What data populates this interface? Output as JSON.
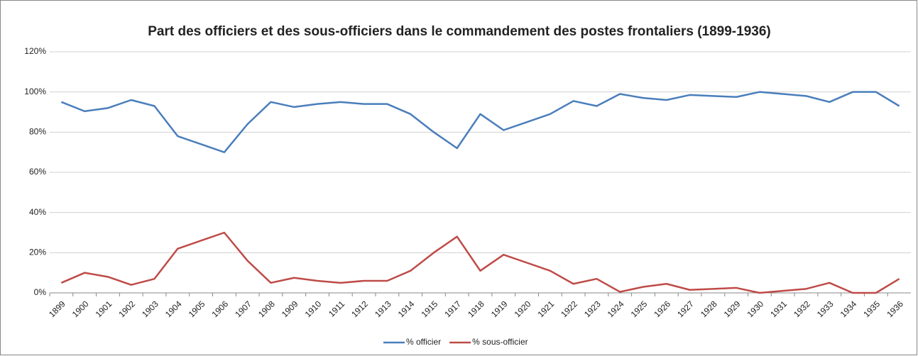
{
  "chart_data": {
    "type": "line",
    "title": "Part des officiers et des sous-officiers dans le commandement des postes frontaliers (1899-1936)",
    "categories": [
      "1899",
      "1900",
      "1901",
      "1902",
      "1903",
      "1904",
      "1905",
      "1906",
      "1907",
      "1908",
      "1909",
      "1910",
      "1911",
      "1912",
      "1913",
      "1914",
      "1915",
      "1917",
      "1918",
      "1919",
      "1920",
      "1921",
      "1922",
      "1923",
      "1924",
      "1925",
      "1926",
      "1927",
      "1928",
      "1929",
      "1930",
      "1931",
      "1932",
      "1933",
      "1934",
      "1935",
      "1936"
    ],
    "series": [
      {
        "name": "% officier",
        "color": "#4a7ebb",
        "values": [
          95,
          90.4,
          92,
          96,
          93,
          78,
          74,
          70,
          84,
          95,
          92.5,
          94,
          95,
          94,
          94,
          89,
          80,
          72,
          89,
          81,
          85,
          89,
          95.5,
          93,
          99,
          97,
          96,
          98.5,
          98,
          97.5,
          100,
          99,
          98,
          95,
          100,
          100,
          93
        ]
      },
      {
        "name": "% sous-officier",
        "color": "#be4b48",
        "values": [
          5,
          10,
          8,
          4,
          7,
          22,
          26,
          30,
          16,
          5,
          7.5,
          6,
          5,
          6,
          6,
          11,
          20,
          28,
          11,
          19,
          15,
          11,
          4.5,
          7,
          0.5,
          3,
          4.5,
          1.5,
          2,
          2.5,
          0,
          1,
          2,
          5,
          0,
          0,
          7
        ]
      }
    ],
    "ylim": [
      0,
      120
    ],
    "yticks": [
      {
        "value": 0,
        "label": "0%"
      },
      {
        "value": 20,
        "label": "20%"
      },
      {
        "value": 40,
        "label": "40%"
      },
      {
        "value": 60,
        "label": "60%"
      },
      {
        "value": 80,
        "label": "80%"
      },
      {
        "value": 100,
        "label": "100%"
      },
      {
        "value": 120,
        "label": "120%"
      }
    ],
    "grid": true,
    "legend": "bottom"
  }
}
